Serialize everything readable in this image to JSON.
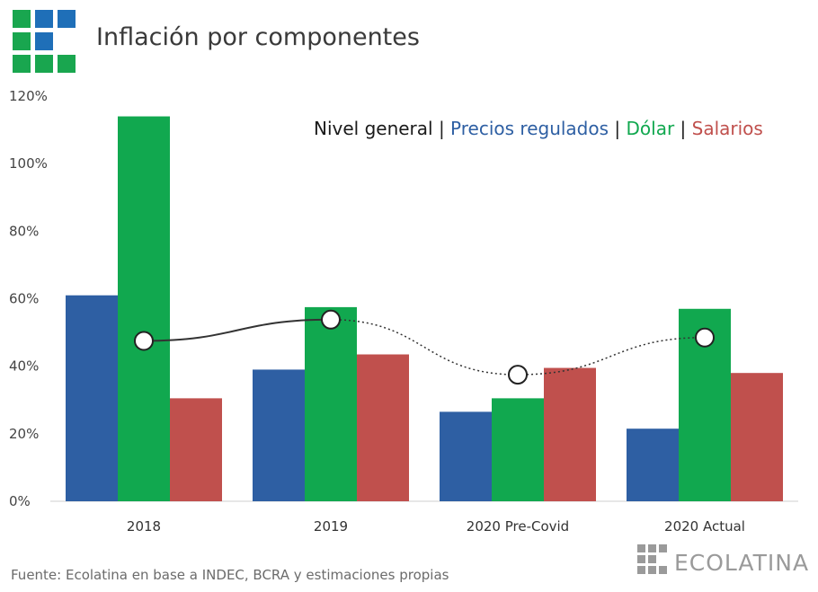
{
  "title": "Inflación por componentes",
  "footer": "Fuente: Ecolatina en base a INDEC, BCRA y estimaciones propias",
  "brand": "ECOLATINA",
  "legend": {
    "items": [
      {
        "label": "Nivel general",
        "color": "#1a1a1a"
      },
      {
        "label": "Precios regulados",
        "color": "#2e5fa3"
      },
      {
        "label": "Dólar",
        "color": "#11a84f"
      },
      {
        "label": "Salarios",
        "color": "#c0504d"
      }
    ],
    "separator": " | "
  },
  "colors": {
    "logo_blue": "#1f6fb8",
    "logo_green": "#19a64f",
    "axis_text": "#444444",
    "brand_gray": "#9a9a9a"
  },
  "chart_data": {
    "type": "bar",
    "categories": [
      "2018",
      "2019",
      "2020 Pre-Covid",
      "2020 Actual"
    ],
    "series": [
      {
        "name": "Precios regulados",
        "values": [
          61,
          39,
          26.5,
          21.5
        ],
        "color": "#2e5fa3"
      },
      {
        "name": "Dólar",
        "values": [
          114,
          57.5,
          30.5,
          57
        ],
        "color": "#11a84f"
      },
      {
        "name": "Salarios",
        "values": [
          30.5,
          43.5,
          39.5,
          38
        ],
        "color": "#c0504d"
      }
    ],
    "line_series": {
      "name": "Nivel general",
      "values": [
        47.5,
        53.8,
        37.5,
        48.5
      ],
      "color": "#333333"
    },
    "ylim": [
      0,
      120
    ],
    "yticks": [
      "0%",
      "20%",
      "40%",
      "60%",
      "80%",
      "100%",
      "120%"
    ],
    "ytick_values": [
      0,
      20,
      40,
      60,
      80,
      100,
      120
    ],
    "grid": false,
    "legend_position": "top-right",
    "xlabel": "",
    "ylabel": ""
  }
}
